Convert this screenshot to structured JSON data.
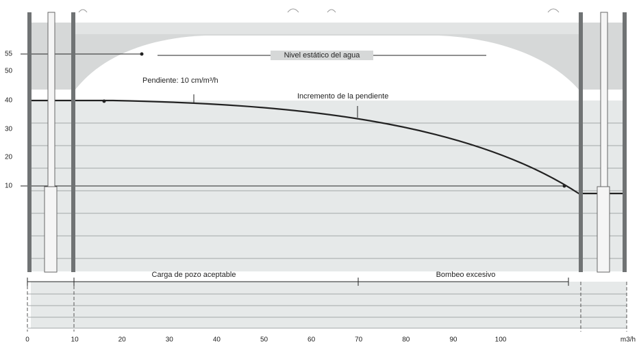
{
  "y_axis": {
    "labels": [
      "55",
      "50",
      "40",
      "30",
      "20",
      "10"
    ]
  },
  "x_axis": {
    "labels": [
      "0",
      "10",
      "20",
      "30",
      "40",
      "50",
      "60",
      "70",
      "80",
      "90",
      "100"
    ],
    "unit": "m3/h"
  },
  "annotations": {
    "static_level": "Nivel estático del agua",
    "slope": "Pendiente: 10 cm/m³/h",
    "slope_increase": "Incremento de la pendiente"
  },
  "zones": {
    "acceptable": "Carga de pozo aceptable",
    "excessive": "Bombeo excesivo"
  }
}
